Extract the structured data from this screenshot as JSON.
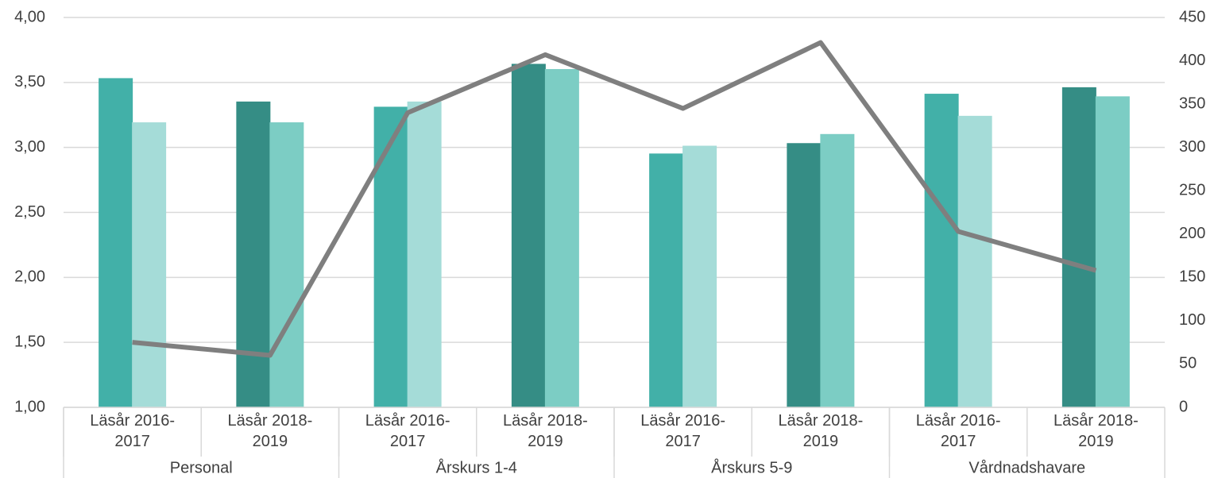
{
  "chart_data": {
    "type": "bar-line",
    "groups": [
      {
        "label": "Personal",
        "span": 2
      },
      {
        "label": "Årskurs 1-4",
        "span": 2
      },
      {
        "label": "Årskurs 5-9",
        "span": 2
      },
      {
        "label": "Vårdnadshavare",
        "span": 2
      }
    ],
    "categories": [
      "Läsår 2016-2017",
      "Läsår 2018-2019",
      "Läsår 2016-2017",
      "Läsår 2018-2019",
      "Läsår 2016-2017",
      "Läsår 2018-2019",
      "Läsår 2016-2017",
      "Läsår 2018-2019"
    ],
    "series": [
      {
        "type": "bar",
        "colors": [
          "#42b0a8",
          "#358d85",
          "#42b0a8",
          "#358d85",
          "#42b0a8",
          "#358d85",
          "#42b0a8",
          "#358d85"
        ],
        "values": [
          3.53,
          3.35,
          3.31,
          3.64,
          2.95,
          3.03,
          3.41,
          3.46
        ]
      },
      {
        "type": "bar",
        "colors": [
          "#a5dcd8",
          "#7ccdc4",
          "#a5dcd8",
          "#7ccdc4",
          "#a5dcd8",
          "#7ccdc4",
          "#a5dcd8",
          "#7ccdc4"
        ],
        "values": [
          3.19,
          3.19,
          3.35,
          3.6,
          3.01,
          3.1,
          3.24,
          3.39
        ]
      },
      {
        "type": "line",
        "axis": "y2",
        "color": "#7f7f7f",
        "values": [
          75,
          60,
          340,
          407,
          345,
          421,
          203,
          158
        ]
      }
    ],
    "ylim": [
      1,
      4
    ],
    "yticks": [
      {
        "value": 1,
        "label": "1,00"
      },
      {
        "value": 1.5,
        "label": "1,50"
      },
      {
        "value": 2,
        "label": "2,00"
      },
      {
        "value": 2.5,
        "label": "2,50"
      },
      {
        "value": 3,
        "label": "3,00"
      },
      {
        "value": 3.5,
        "label": "3,50"
      },
      {
        "value": 4,
        "label": "4,00"
      }
    ],
    "y2lim": [
      0,
      450
    ],
    "y2ticks": [
      0,
      50,
      100,
      150,
      200,
      250,
      300,
      350,
      400,
      450
    ],
    "grid": true
  }
}
